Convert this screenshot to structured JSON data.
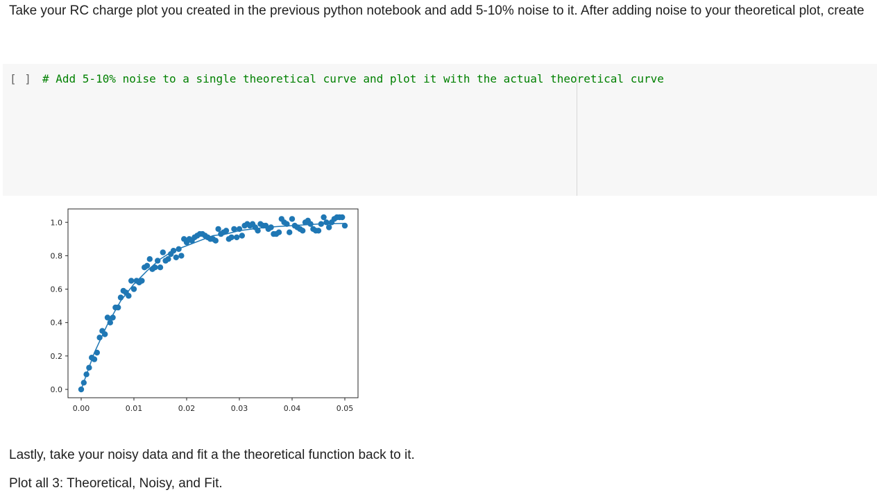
{
  "markdown": {
    "intro": "Take your RC charge plot you created in the previous python notebook and add 5-10% noise to it. After adding noise to your theoretical plot, create",
    "outro_line1": "Lastly, take your noisy data and fit a the theoretical function back to it.",
    "outro_line2": "Plot all 3: Theoretical, Noisy, and Fit."
  },
  "code_cell": {
    "run_label": "[ ]",
    "code": "# Add 5-10% noise to a single theoretical curve and plot it with the actual theoretical curve"
  },
  "colors": {
    "series": "#1f77b4",
    "comment": "#008000",
    "cell_bg": "#f7f7f7"
  },
  "chart_data": {
    "type": "scatter",
    "title": "",
    "xlabel": "",
    "ylabel": "",
    "xlim": [
      -0.0025,
      0.0525
    ],
    "ylim": [
      -0.05,
      1.08
    ],
    "xticks": [
      "0.00",
      "0.01",
      "0.02",
      "0.03",
      "0.04",
      "0.05"
    ],
    "yticks": [
      "0.0",
      "0.2",
      "0.4",
      "0.6",
      "0.8",
      "1.0"
    ],
    "grid": false,
    "legend": "none",
    "line": {
      "x": [
        0,
        0.0025,
        0.005,
        0.0075,
        0.01,
        0.0125,
        0.015,
        0.0175,
        0.02,
        0.0225,
        0.025,
        0.0275,
        0.03,
        0.0325,
        0.035,
        0.0375,
        0.04,
        0.0425,
        0.045,
        0.0475,
        0.05
      ],
      "y": [
        0,
        0.22,
        0.39,
        0.53,
        0.63,
        0.71,
        0.78,
        0.83,
        0.86,
        0.89,
        0.92,
        0.93,
        0.95,
        0.96,
        0.97,
        0.975,
        0.98,
        0.985,
        0.99,
        0.992,
        0.993
      ]
    },
    "scatter": {
      "x": [
        0.0,
        0.0005,
        0.001,
        0.0015,
        0.002,
        0.0025,
        0.003,
        0.0035,
        0.004,
        0.0045,
        0.005,
        0.0055,
        0.006,
        0.0065,
        0.007,
        0.0075,
        0.008,
        0.0085,
        0.009,
        0.0095,
        0.01,
        0.0105,
        0.011,
        0.0115,
        0.012,
        0.0125,
        0.013,
        0.0135,
        0.014,
        0.0145,
        0.015,
        0.0155,
        0.016,
        0.0165,
        0.017,
        0.0175,
        0.018,
        0.0185,
        0.019,
        0.0195,
        0.02,
        0.0205,
        0.021,
        0.0215,
        0.022,
        0.0225,
        0.023,
        0.0235,
        0.024,
        0.0245,
        0.025,
        0.0255,
        0.026,
        0.0265,
        0.027,
        0.0275,
        0.028,
        0.0285,
        0.029,
        0.0295,
        0.03,
        0.0305,
        0.031,
        0.0315,
        0.032,
        0.0325,
        0.033,
        0.0335,
        0.034,
        0.0345,
        0.035,
        0.0355,
        0.036,
        0.0365,
        0.037,
        0.0375,
        0.038,
        0.0385,
        0.039,
        0.0395,
        0.04,
        0.0405,
        0.041,
        0.0415,
        0.042,
        0.0425,
        0.043,
        0.0435,
        0.044,
        0.0445,
        0.045,
        0.0455,
        0.046,
        0.0465,
        0.047,
        0.0475,
        0.048,
        0.0485,
        0.049,
        0.0495,
        0.05
      ],
      "y": [
        0.0,
        0.04,
        0.09,
        0.13,
        0.19,
        0.18,
        0.22,
        0.31,
        0.35,
        0.33,
        0.43,
        0.4,
        0.43,
        0.49,
        0.49,
        0.55,
        0.59,
        0.58,
        0.56,
        0.65,
        0.6,
        0.65,
        0.64,
        0.65,
        0.73,
        0.74,
        0.78,
        0.72,
        0.73,
        0.77,
        0.73,
        0.82,
        0.77,
        0.78,
        0.81,
        0.83,
        0.79,
        0.84,
        0.8,
        0.9,
        0.88,
        0.9,
        0.89,
        0.91,
        0.92,
        0.93,
        0.93,
        0.92,
        0.91,
        0.9,
        0.9,
        0.89,
        0.96,
        0.93,
        0.94,
        0.95,
        0.9,
        0.91,
        0.96,
        0.91,
        0.96,
        0.92,
        0.98,
        0.99,
        0.98,
        0.99,
        0.97,
        0.95,
        0.99,
        0.98,
        0.98,
        0.96,
        0.97,
        0.93,
        0.93,
        0.94,
        1.02,
        1.0,
        0.99,
        0.94,
        1.02,
        0.98,
        0.97,
        0.96,
        0.95,
        1.0,
        1.01,
        0.99,
        0.96,
        0.95,
        0.95,
        0.99,
        1.03,
        1.0,
        0.97,
        1.0,
        1.02,
        1.03,
        1.03,
        1.03,
        0.98
      ]
    }
  }
}
